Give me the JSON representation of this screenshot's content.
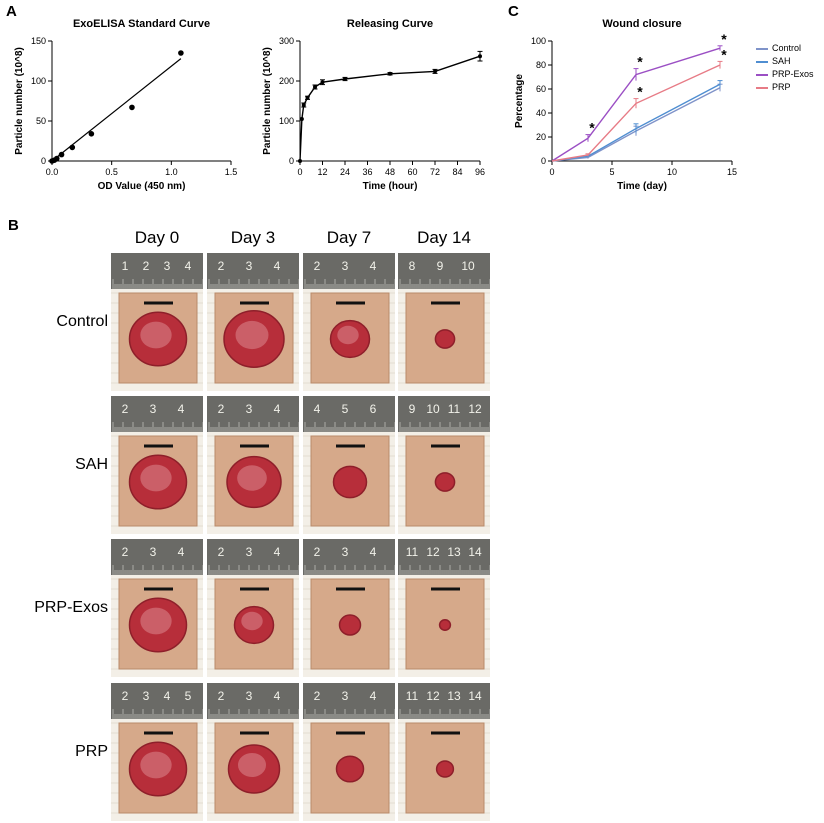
{
  "panels": {
    "a": "A",
    "b": "B",
    "c": "C"
  },
  "chart_data": [
    {
      "type": "scatter",
      "title": "ExoELISA Standard Curve",
      "xlabel": "OD Value (450 nm)",
      "ylabel": "Particle number (10^8)",
      "xlim": [
        0,
        1.5
      ],
      "ylim": [
        0,
        150
      ],
      "xticks": [
        "0.0",
        "0.5",
        "1.0",
        "1.5"
      ],
      "yticks": [
        "0",
        "50",
        "100",
        "150"
      ],
      "x": [
        0.0,
        0.02,
        0.04,
        0.08,
        0.17,
        0.33,
        0.67,
        1.08
      ],
      "y": [
        0,
        1,
        3,
        8,
        17,
        34,
        67,
        135
      ],
      "fit_line": {
        "x": [
          0.0,
          1.08
        ],
        "y": [
          0,
          128
        ]
      }
    },
    {
      "type": "line",
      "title": "Releasing Curve",
      "xlabel": "Time (hour)",
      "ylabel": "Particle number (10^8)",
      "xlim": [
        0,
        96
      ],
      "ylim": [
        0,
        300
      ],
      "xticks": [
        "0",
        "12",
        "24",
        "36",
        "48",
        "60",
        "72",
        "84",
        "96"
      ],
      "yticks": [
        "0",
        "100",
        "200",
        "300"
      ],
      "x": [
        0,
        1,
        2,
        4,
        8,
        12,
        24,
        48,
        72,
        96
      ],
      "y": [
        0,
        105,
        140,
        158,
        185,
        197,
        205,
        218,
        224,
        262
      ],
      "err": [
        0,
        0,
        5,
        4,
        5,
        6,
        4,
        3,
        5,
        12
      ]
    },
    {
      "type": "line",
      "title": "Wound closure",
      "xlabel": "Time (day)",
      "ylabel": "Percentage",
      "xlim": [
        0,
        15
      ],
      "ylim": [
        0,
        100
      ],
      "xticks": [
        "0",
        "5",
        "10",
        "15"
      ],
      "yticks": [
        "0",
        "20",
        "40",
        "60",
        "80",
        "100"
      ],
      "x": [
        0,
        3,
        7,
        14
      ],
      "series": [
        {
          "name": "Control",
          "values": [
            0,
            3,
            25,
            61
          ],
          "err": [
            0,
            1,
            4,
            3
          ],
          "color": "#7f93c9"
        },
        {
          "name": "SAH",
          "values": [
            0,
            4,
            27,
            64
          ],
          "err": [
            0,
            1,
            4,
            3
          ],
          "color": "#4f8ed1"
        },
        {
          "name": "PRP-Exos",
          "values": [
            0,
            19,
            72,
            94
          ],
          "err": [
            0,
            3,
            5,
            2
          ],
          "color": "#9b4fc4"
        },
        {
          "name": "PRP",
          "values": [
            0,
            5,
            48,
            80
          ],
          "err": [
            0,
            1,
            4,
            3
          ],
          "color": "#e77b86"
        }
      ],
      "significance": [
        {
          "series": "PRP-Exos",
          "x": 3,
          "label": "*"
        },
        {
          "series": "PRP-Exos",
          "x": 7,
          "label": "*"
        },
        {
          "series": "PRP-Exos",
          "x": 14,
          "label": "*"
        },
        {
          "series": "PRP",
          "x": 7,
          "label": "*"
        },
        {
          "series": "PRP",
          "x": 14,
          "label": "*"
        }
      ]
    }
  ],
  "photo_grid": {
    "columns": [
      "Day 0",
      "Day 3",
      "Day 7",
      "Day 14"
    ],
    "rows": [
      "Control",
      "SAH",
      "PRP-Exos",
      "PRP"
    ],
    "ruler_numbers": [
      [
        [
          "1",
          "2",
          "3",
          "4"
        ],
        [
          "2",
          "3",
          "4"
        ],
        [
          "2",
          "3",
          "4"
        ],
        [
          "8",
          "9",
          "10"
        ]
      ],
      [
        [
          "2",
          "3",
          "4"
        ],
        [
          "2",
          "3",
          "4"
        ],
        [
          "4",
          "5",
          "6"
        ],
        [
          "9",
          "10",
          "11",
          "12"
        ]
      ],
      [
        [
          "2",
          "3",
          "4"
        ],
        [
          "2",
          "3",
          "4"
        ],
        [
          "2",
          "3",
          "4"
        ],
        [
          "11",
          "12",
          "13",
          "14"
        ]
      ],
      [
        [
          "2",
          "3",
          "4",
          "5"
        ],
        [
          "2",
          "3",
          "4"
        ],
        [
          "2",
          "3",
          "4"
        ],
        [
          "11",
          "12",
          "13",
          "14"
        ]
      ]
    ],
    "wound_size": [
      [
        0.85,
        0.9,
        0.55,
        0.22
      ],
      [
        0.85,
        0.8,
        0.45,
        0.22
      ],
      [
        0.85,
        0.55,
        0.25,
        0.08
      ],
      [
        0.85,
        0.75,
        0.35,
        0.18
      ]
    ]
  }
}
